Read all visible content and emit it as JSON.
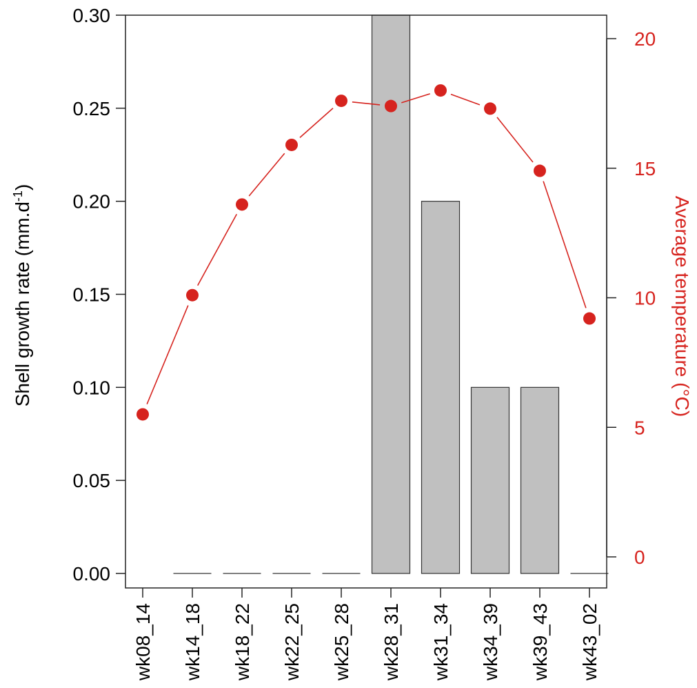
{
  "chart_data": {
    "type": "bar",
    "categories": [
      "wk08_14",
      "wk14_18",
      "wk18_22",
      "wk22_25",
      "wk25_28",
      "wk28_31",
      "wk31_34",
      "wk34_39",
      "wk39_43",
      "wk43_02"
    ],
    "series": [
      {
        "type": "bar",
        "axis": "left",
        "values": [
          null,
          0,
          0,
          0,
          0,
          0.3,
          0.2,
          0.1,
          0.1,
          0
        ],
        "color": "#c0c0c0"
      },
      {
        "type": "line",
        "axis": "right",
        "values": [
          5.5,
          10.1,
          13.6,
          15.9,
          17.6,
          17.4,
          18.0,
          17.3,
          14.9,
          9.2
        ],
        "color": "#d6231e"
      }
    ],
    "ylabel": "Shell growth rate (mm.d",
    "ylabel_superscript": "-1",
    "ylabel_suffix": ")",
    "ylim": [
      0,
      0.3
    ],
    "y_ticks": [
      "0.00",
      "0.05",
      "0.10",
      "0.15",
      "0.20",
      "0.25",
      "0.30"
    ],
    "y2label": "Average temperature (°C)",
    "y2_ticks": [
      "0",
      "5",
      "10",
      "15",
      "20"
    ],
    "y2_tick_values": [
      0,
      5,
      10,
      15,
      20
    ],
    "y2_axis_color": "#d6231e",
    "grid": false,
    "legend": "none"
  }
}
